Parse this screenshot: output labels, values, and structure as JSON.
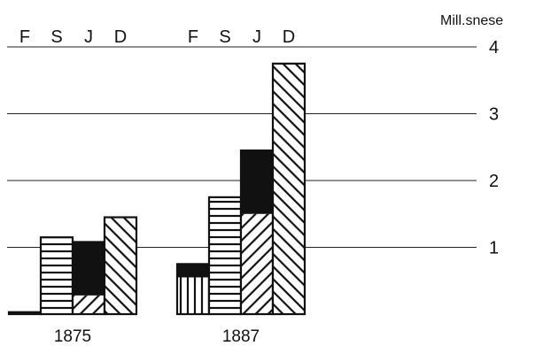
{
  "chart_data": {
    "type": "bar",
    "title": "",
    "ylabel": "Mill.snese",
    "ylim": [
      0,
      4
    ],
    "y_ticks": [
      "1",
      "2",
      "3",
      "4"
    ],
    "grid": true,
    "groups": [
      {
        "label": "1875",
        "bars": [
          {
            "category": "F",
            "segments": [
              {
                "value": 0.03,
                "pattern": "solid"
              }
            ]
          },
          {
            "category": "S",
            "segments": [
              {
                "value": 1.15,
                "pattern": "horizontal"
              }
            ]
          },
          {
            "category": "J",
            "segments": [
              {
                "value": 0.28,
                "pattern": "diagonal"
              },
              {
                "value": 0.8,
                "pattern": "solid"
              }
            ]
          },
          {
            "category": "D",
            "segments": [
              {
                "value": 1.45,
                "pattern": "backdiagonal"
              }
            ]
          }
        ]
      },
      {
        "label": "1887",
        "bars": [
          {
            "category": "F",
            "segments": [
              {
                "value": 0.55,
                "pattern": "vertical"
              },
              {
                "value": 0.2,
                "pattern": "solid"
              }
            ]
          },
          {
            "category": "S",
            "segments": [
              {
                "value": 1.75,
                "pattern": "horizontal"
              }
            ]
          },
          {
            "category": "J",
            "segments": [
              {
                "value": 1.5,
                "pattern": "diagonal"
              },
              {
                "value": 0.95,
                "pattern": "solid"
              }
            ]
          },
          {
            "category": "D",
            "segments": [
              {
                "value": 3.75,
                "pattern": "backdiagonal"
              }
            ]
          }
        ]
      }
    ]
  }
}
